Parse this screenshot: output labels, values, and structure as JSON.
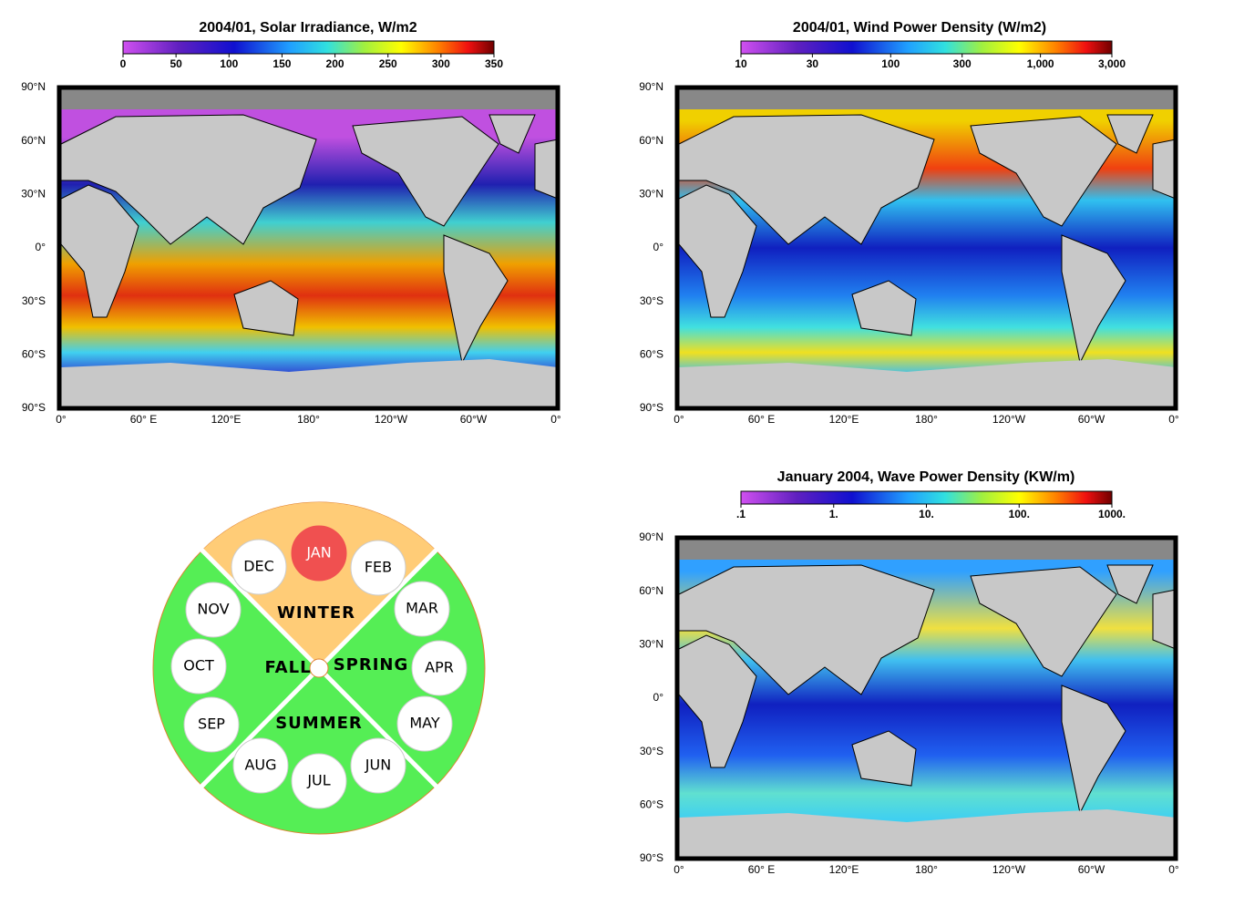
{
  "panels": [
    {
      "title": "2004/01, Solar Irradiance, W/m2",
      "colorbar": {
        "lim": [
          0,
          350
        ],
        "log": false,
        "ticks": [
          0,
          50,
          100,
          150,
          200,
          250,
          300,
          350
        ]
      }
    },
    {
      "title": "2004/01, Wind Power Density (W/m2)",
      "colorbar": {
        "lim": [
          10,
          3000
        ],
        "log": true,
        "ticks": [
          10,
          30,
          100,
          300,
          {
            "value": 1000,
            "label": "1,000"
          },
          {
            "value": 3000,
            "label": "3,000"
          }
        ]
      }
    },
    {
      "title": "January 2004, Wave Power Density (KW/m)",
      "colorbar": {
        "lim": [
          0.1,
          1000
        ],
        "log": true,
        "ticks": [
          {
            "value": 0.1,
            "label": ".1"
          },
          {
            "value": 1,
            "label": "1."
          },
          {
            "value": 10,
            "label": "10."
          },
          {
            "value": 100,
            "label": "100."
          },
          {
            "value": 1000,
            "label": "1000."
          }
        ]
      }
    }
  ],
  "map_axes": {
    "lat_labels": [
      "90°N",
      "60°N",
      "30°N",
      "0°",
      "30°S",
      "60°S",
      "90°S"
    ],
    "lon_labels": [
      "0°",
      "60° E",
      "120°E",
      "180°",
      "120°W",
      "60°W",
      "0°"
    ]
  },
  "season_wheel": {
    "seasons": [
      "WINTER",
      "SPRING",
      "SUMMER",
      "FALL"
    ],
    "months": [
      "JAN",
      "FEB",
      "MAR",
      "APR",
      "MAY",
      "JUN",
      "JUL",
      "AUG",
      "SEP",
      "OCT",
      "NOV",
      "DEC"
    ],
    "selected": "JAN"
  }
}
